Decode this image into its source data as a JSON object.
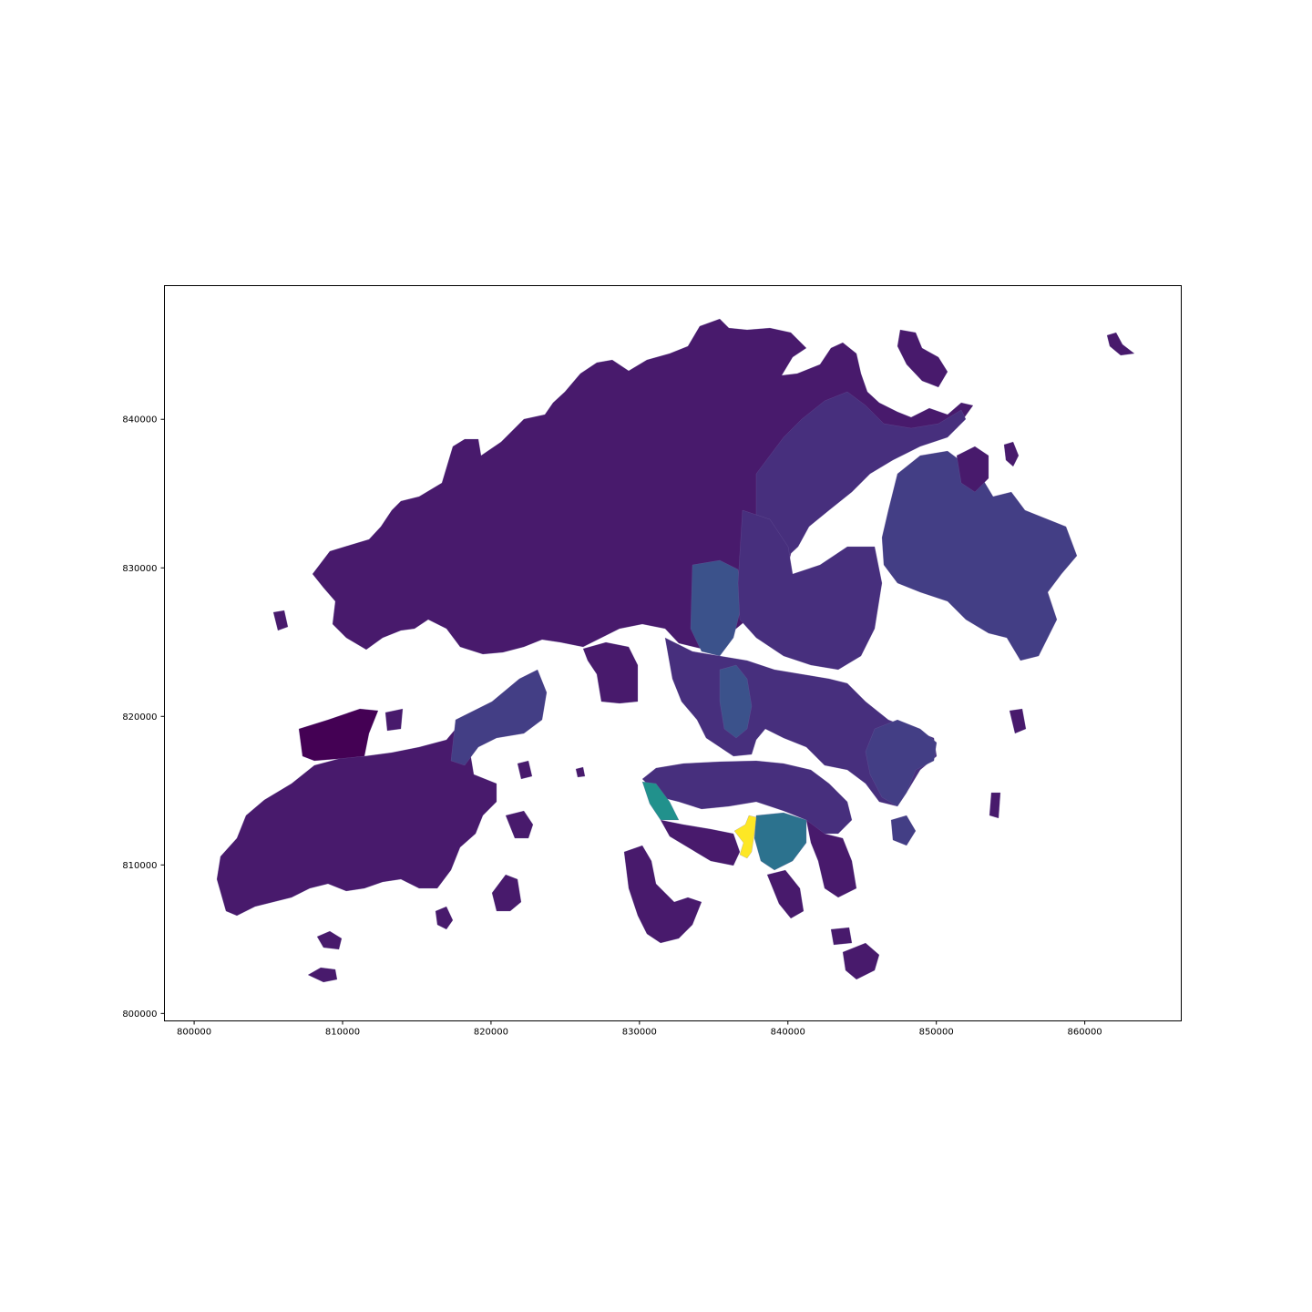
{
  "chart_data": {
    "type": "choropleth",
    "title": "",
    "xlabel": "",
    "ylabel": "",
    "xlim": [
      798000,
      866500
    ],
    "ylim": [
      799500,
      849000
    ],
    "xticks": [
      800000,
      810000,
      820000,
      830000,
      840000,
      850000,
      860000
    ],
    "yticks": [
      800000,
      810000,
      820000,
      830000,
      840000
    ],
    "xtick_labels": [
      "800000",
      "810000",
      "820000",
      "830000",
      "840000",
      "850000",
      "860000"
    ],
    "ytick_labels": [
      "800000",
      "810000",
      "820000",
      "830000",
      "840000"
    ],
    "grid": false,
    "legend": "none",
    "colormap": "viridis",
    "colors": {
      "lowest": "#440154",
      "low": "#481a6c",
      "low_mid": "#472f7d",
      "mid_low": "#433e85",
      "mid": "#3b528b",
      "mid_high": "#2c728e",
      "teal": "#21918c",
      "highest": "#fde725"
    }
  }
}
